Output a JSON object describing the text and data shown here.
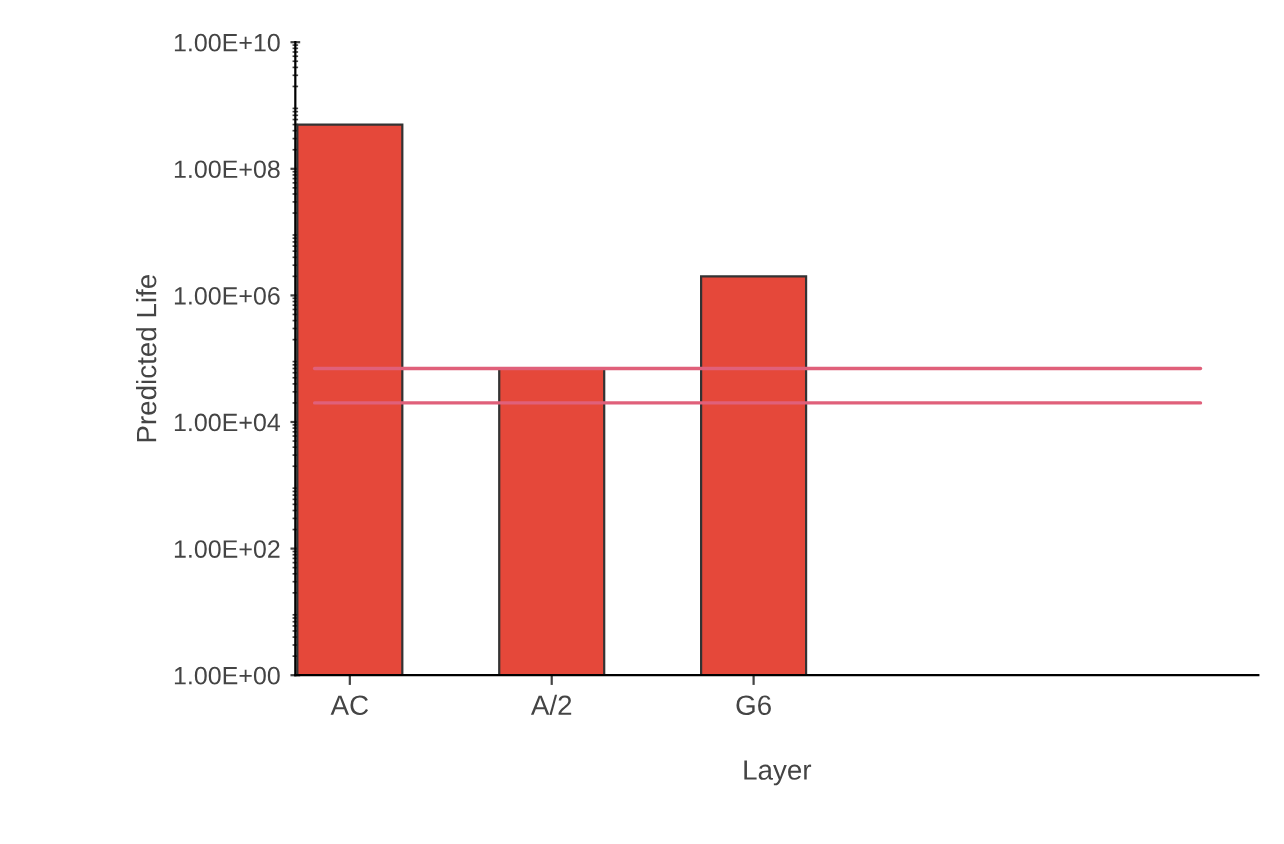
{
  "chart_data": {
    "type": "bar",
    "xlabel": "Layer",
    "ylabel": "Predicted Life",
    "categories": [
      "AC",
      "A/2",
      "G6"
    ],
    "values": [
      500000000,
      70000,
      2000000
    ],
    "color": "#e5483a",
    "log": true,
    "ylim": [
      1,
      10000000000
    ],
    "yticks": [
      {
        "value": 1,
        "label": "1.00E+00"
      },
      {
        "value": 100,
        "label": "1.00E+02"
      },
      {
        "value": 10000,
        "label": "1.00E+04"
      },
      {
        "value": 1000000,
        "label": "1.00E+06"
      },
      {
        "value": 100000000,
        "label": "1.00E+08"
      },
      {
        "value": 10000000000,
        "label": "1.00E+10"
      }
    ],
    "ref_lines": [
      {
        "axis": "y",
        "value": 70000,
        "color": "#e0607a"
      },
      {
        "axis": "y",
        "value": 20000,
        "color": "#e0607a"
      }
    ],
    "grid": false,
    "legend": false
  }
}
